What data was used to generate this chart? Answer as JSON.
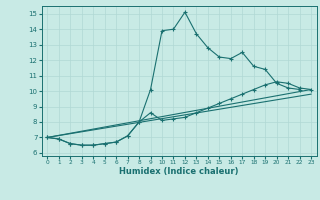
{
  "title": "",
  "xlabel": "Humidex (Indice chaleur)",
  "ylabel": "",
  "bg_color": "#c8eae5",
  "line_color": "#1a7070",
  "grid_color": "#b0d8d4",
  "xlim": [
    -0.5,
    23.5
  ],
  "ylim": [
    5.8,
    15.5
  ],
  "yticks": [
    6,
    7,
    8,
    9,
    10,
    11,
    12,
    13,
    14,
    15
  ],
  "xticks": [
    0,
    1,
    2,
    3,
    4,
    5,
    6,
    7,
    8,
    9,
    10,
    11,
    12,
    13,
    14,
    15,
    16,
    17,
    18,
    19,
    20,
    21,
    22,
    23
  ],
  "line1_x": [
    0,
    1,
    2,
    3,
    4,
    5,
    6,
    7,
    8,
    9,
    10,
    11,
    12,
    13,
    14,
    15,
    16,
    17,
    18,
    19,
    20,
    21,
    22
  ],
  "line1_y": [
    7.0,
    6.9,
    6.6,
    6.5,
    6.5,
    6.6,
    6.7,
    7.1,
    8.0,
    10.1,
    13.9,
    14.0,
    15.1,
    13.7,
    12.8,
    12.2,
    12.1,
    12.5,
    11.6,
    11.4,
    10.5,
    10.2,
    10.1
  ],
  "line2_x": [
    0,
    1,
    2,
    3,
    4,
    5,
    6,
    7,
    8,
    9,
    10,
    11,
    12,
    13,
    14,
    15,
    16,
    17,
    18,
    19,
    20,
    21,
    22,
    23
  ],
  "line2_y": [
    7.0,
    6.9,
    6.6,
    6.5,
    6.5,
    6.6,
    6.7,
    7.1,
    8.0,
    8.6,
    8.1,
    8.2,
    8.3,
    8.6,
    8.9,
    9.2,
    9.5,
    9.8,
    10.1,
    10.4,
    10.6,
    10.5,
    10.2,
    10.1
  ],
  "line3_x": [
    0,
    23
  ],
  "line3_y": [
    7.0,
    9.8
  ],
  "line4_x": [
    0,
    23
  ],
  "line4_y": [
    7.0,
    10.1
  ]
}
